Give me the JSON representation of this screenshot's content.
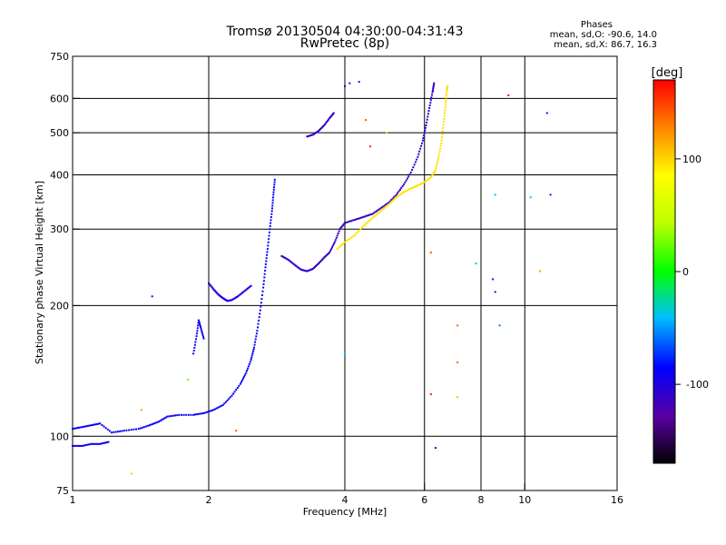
{
  "chart_data": {
    "type": "scatter",
    "title": "Tromsø 20130504 04:30:00-04:31:43",
    "subtitle": "RwPretec (8p)",
    "xlabel": "Frequency [MHz]",
    "ylabel": "Stationary phase Virtual Height [km]",
    "xscale": "log",
    "yscale": "log",
    "xlim": [
      1,
      16
    ],
    "ylim": [
      75,
      750
    ],
    "x_ticks": [
      1,
      2,
      4,
      6,
      8,
      10,
      16
    ],
    "y_ticks": [
      75,
      100,
      200,
      300,
      400,
      500,
      600,
      750
    ],
    "x_grid": [
      2,
      4,
      6,
      8,
      10
    ],
    "y_grid": [
      100,
      200,
      300,
      400,
      500,
      600
    ],
    "grid": true,
    "stats": {
      "title": "Phases",
      "o_label": "mean, sd,O:",
      "o_values": "-90.6, 14.0",
      "x_label": "mean, sd,X:",
      "x_values": "86.7, 16.3"
    },
    "colorbar": {
      "label": "[deg]",
      "min": -170,
      "max": 170,
      "ticks": [
        100,
        0,
        -100
      ]
    },
    "traces": [
      {
        "phase": -90,
        "points": [
          [
            1.0,
            104
          ],
          [
            1.05,
            105
          ],
          [
            1.1,
            106
          ],
          [
            1.15,
            107
          ],
          [
            1.22,
            102
          ],
          [
            1.3,
            103
          ],
          [
            1.4,
            104
          ],
          [
            1.48,
            106
          ],
          [
            1.55,
            108
          ],
          [
            1.62,
            111
          ],
          [
            1.72,
            112
          ],
          [
            1.85,
            112
          ],
          [
            1.95,
            113
          ],
          [
            2.05,
            115
          ],
          [
            2.15,
            118
          ],
          [
            2.25,
            124
          ],
          [
            2.35,
            132
          ],
          [
            2.42,
            140
          ],
          [
            2.48,
            150
          ],
          [
            2.52,
            160
          ],
          [
            2.56,
            175
          ],
          [
            2.6,
            195
          ],
          [
            2.64,
            220
          ],
          [
            2.67,
            245
          ],
          [
            2.7,
            270
          ],
          [
            2.73,
            300
          ],
          [
            2.76,
            330
          ],
          [
            2.78,
            360
          ],
          [
            2.8,
            390
          ]
        ]
      },
      {
        "phase": -95,
        "points": [
          [
            1.0,
            95
          ],
          [
            1.05,
            95
          ],
          [
            1.1,
            96
          ],
          [
            1.15,
            96
          ],
          [
            1.2,
            97
          ]
        ]
      },
      {
        "phase": -100,
        "points": [
          [
            2.0,
            225
          ],
          [
            2.05,
            218
          ],
          [
            2.1,
            212
          ],
          [
            2.15,
            208
          ],
          [
            2.2,
            205
          ],
          [
            2.25,
            206
          ],
          [
            2.32,
            210
          ],
          [
            2.4,
            216
          ],
          [
            2.48,
            222
          ]
        ]
      },
      {
        "phase": -95,
        "points": [
          [
            1.85,
            155
          ],
          [
            1.88,
            170
          ],
          [
            1.9,
            185
          ],
          [
            1.92,
            178
          ],
          [
            1.95,
            168
          ]
        ]
      },
      {
        "phase": -110,
        "points": [
          [
            2.9,
            260
          ],
          [
            3.0,
            255
          ],
          [
            3.1,
            248
          ],
          [
            3.2,
            242
          ],
          [
            3.3,
            240
          ],
          [
            3.4,
            243
          ],
          [
            3.5,
            250
          ],
          [
            3.6,
            258
          ],
          [
            3.7,
            265
          ],
          [
            3.8,
            280
          ],
          [
            3.9,
            300
          ],
          [
            4.0,
            310
          ],
          [
            4.2,
            315
          ],
          [
            4.4,
            320
          ],
          [
            4.6,
            325
          ],
          [
            4.8,
            335
          ],
          [
            5.0,
            345
          ],
          [
            5.2,
            360
          ],
          [
            5.4,
            380
          ],
          [
            5.6,
            405
          ],
          [
            5.8,
            440
          ],
          [
            5.95,
            480
          ],
          [
            6.05,
            520
          ],
          [
            6.15,
            570
          ],
          [
            6.25,
            620
          ],
          [
            6.3,
            650
          ]
        ]
      },
      {
        "phase": 95,
        "points": [
          [
            3.85,
            270
          ],
          [
            4.0,
            280
          ],
          [
            4.2,
            290
          ],
          [
            4.4,
            305
          ],
          [
            4.6,
            318
          ],
          [
            4.8,
            330
          ],
          [
            5.0,
            342
          ],
          [
            5.2,
            355
          ],
          [
            5.4,
            365
          ],
          [
            5.6,
            372
          ],
          [
            5.8,
            378
          ],
          [
            6.0,
            385
          ],
          [
            6.2,
            395
          ],
          [
            6.35,
            410
          ],
          [
            6.45,
            440
          ],
          [
            6.55,
            480
          ],
          [
            6.62,
            530
          ],
          [
            6.68,
            580
          ],
          [
            6.72,
            625
          ],
          [
            6.75,
            640
          ]
        ]
      },
      {
        "phase": -110,
        "points": [
          [
            3.3,
            490
          ],
          [
            3.4,
            495
          ],
          [
            3.5,
            505
          ],
          [
            3.6,
            520
          ],
          [
            3.7,
            540
          ],
          [
            3.78,
            555
          ]
        ]
      }
    ],
    "scatter": [
      {
        "x": 1.5,
        "y": 210,
        "phase": -110
      },
      {
        "x": 1.42,
        "y": 115,
        "phase": 120
      },
      {
        "x": 1.35,
        "y": 82,
        "phase": 100
      },
      {
        "x": 1.8,
        "y": 135,
        "phase": 20
      },
      {
        "x": 2.3,
        "y": 103,
        "phase": 140
      },
      {
        "x": 4.0,
        "y": 640,
        "phase": -100
      },
      {
        "x": 4.1,
        "y": 650,
        "phase": -110
      },
      {
        "x": 4.3,
        "y": 655,
        "phase": -100
      },
      {
        "x": 4.45,
        "y": 535,
        "phase": 140
      },
      {
        "x": 4.55,
        "y": 465,
        "phase": 160
      },
      {
        "x": 4.95,
        "y": 500,
        "phase": 100
      },
      {
        "x": 4.0,
        "y": 155,
        "phase": -40
      },
      {
        "x": 6.2,
        "y": 125,
        "phase": 160
      },
      {
        "x": 6.35,
        "y": 94,
        "phase": -100
      },
      {
        "x": 7.1,
        "y": 180,
        "phase": 140
      },
      {
        "x": 7.1,
        "y": 148,
        "phase": 140
      },
      {
        "x": 7.1,
        "y": 123,
        "phase": 110
      },
      {
        "x": 8.5,
        "y": 230,
        "phase": -110
      },
      {
        "x": 8.6,
        "y": 215,
        "phase": -120
      },
      {
        "x": 8.6,
        "y": 360,
        "phase": -40
      },
      {
        "x": 9.2,
        "y": 610,
        "phase": 170
      },
      {
        "x": 10.3,
        "y": 355,
        "phase": -40
      },
      {
        "x": 10.8,
        "y": 240,
        "phase": 120
      },
      {
        "x": 11.2,
        "y": 555,
        "phase": -110
      },
      {
        "x": 11.4,
        "y": 360,
        "phase": -110
      },
      {
        "x": 8.8,
        "y": 180,
        "phase": -60
      },
      {
        "x": 6.2,
        "y": 265,
        "phase": 140
      },
      {
        "x": 7.8,
        "y": 250,
        "phase": -40
      }
    ]
  }
}
